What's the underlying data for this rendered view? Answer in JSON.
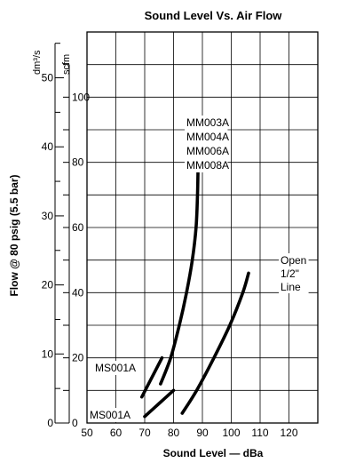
{
  "chart_data": {
    "type": "line",
    "title": "Sound Level Vs. Air Flow",
    "xlabel": "Sound Level — dBa",
    "ylabel": "Flow @ 80 psig (5.5 bar)",
    "x_ticks": [
      "50",
      "60",
      "70",
      "80",
      "90",
      "100",
      "110",
      "120"
    ],
    "xlim": [
      50,
      130
    ],
    "ylim_scfm": [
      0,
      120
    ],
    "y_unit_left": "dm³/s",
    "y_unit_right": "scfm",
    "y_ticks_dm3s": [
      "0",
      "10",
      "20",
      "30",
      "40",
      "50"
    ],
    "y_ticks_scfm": [
      "0",
      "20",
      "40",
      "60",
      "80",
      "100"
    ],
    "grid": true,
    "series": [
      {
        "label_lines": [
          "MM003A",
          "MM004A",
          "MM006A",
          "MM008A"
        ],
        "x": [
          75.5,
          79,
          82,
          84.5,
          86.5,
          87.8,
          88.3,
          88.5
        ],
        "y": [
          12,
          20,
          30,
          40,
          50,
          60,
          70,
          79
        ]
      },
      {
        "label_lines": [
          "Open",
          "1/2\"",
          "Line"
        ],
        "x": [
          83,
          88,
          94,
          99.5,
          104,
          106
        ],
        "y": [
          3,
          10,
          20,
          30,
          40,
          46
        ]
      },
      {
        "label_lines": [
          "MS001A"
        ],
        "x": [
          69,
          76
        ],
        "y": [
          8,
          20
        ]
      },
      {
        "label_lines": [
          "MS001A"
        ],
        "x": [
          70,
          75,
          80
        ],
        "y": [
          2,
          6,
          10
        ]
      }
    ]
  }
}
